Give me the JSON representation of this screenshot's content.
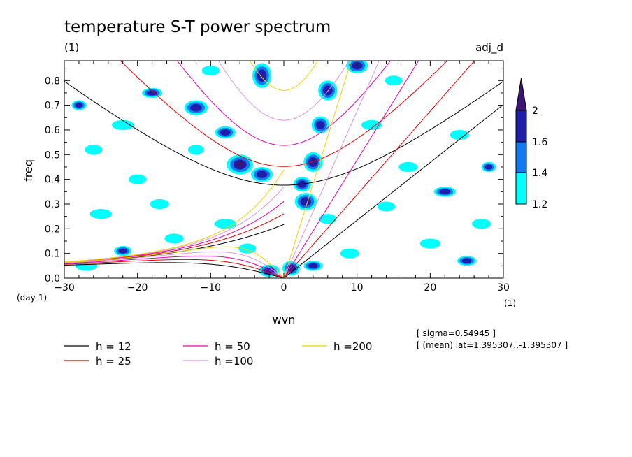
{
  "chart_data": {
    "type": "heatmap",
    "title": "temperature S-T power spectrum",
    "subtitle_left": "(1)",
    "subtitle_right": "adj_d",
    "xlabel": "wvn",
    "ylabel": "freq",
    "x_unit": "(1)",
    "y_unit": "(day-1)",
    "xlim": [
      -30,
      30
    ],
    "ylim": [
      0,
      0.88
    ],
    "x_ticks": [
      -30,
      -20,
      -10,
      0,
      10,
      20,
      30
    ],
    "x_tick_labels": [
      "-30",
      "-20",
      "-10",
      "0",
      "10",
      "20",
      "30"
    ],
    "y_ticks": [
      0,
      0.1,
      0.2,
      0.3,
      0.4,
      0.5,
      0.6,
      0.7,
      0.8
    ],
    "y_tick_labels": [
      "0.0",
      "0.1",
      "0.2",
      "0.3",
      "0.4",
      "0.5",
      "0.6",
      "0.7",
      "0.8"
    ],
    "colorbar": {
      "levels": [
        1.2,
        1.4,
        1.6,
        2
      ],
      "labels": [
        "1.2",
        "1.4",
        "1.6",
        "2"
      ],
      "colors": [
        "#00ffff",
        "#1478f0",
        "#1e1eaa",
        "#3c1478"
      ]
    },
    "dispersion_curves": [
      {
        "label": "h = 12",
        "h": 12,
        "color": "#000000"
      },
      {
        "label": "h = 25",
        "h": 25,
        "color": "#e60000"
      },
      {
        "label": "h = 50",
        "h": 50,
        "color": "#e600b4"
      },
      {
        "label": "h =100",
        "h": 100,
        "color": "#dc96dc"
      },
      {
        "label": "h =200",
        "h": 200,
        "color": "#f0d200"
      }
    ],
    "notes": [
      "[ sigma=0.54945 ]",
      "[ (mean) lat=1.395307..-1.395307 ]"
    ],
    "blobs": [
      {
        "x": -3,
        "y": 0.42,
        "rx": 1.5,
        "ry": 0.03,
        "level": 1.6
      },
      {
        "x": -6,
        "y": 0.46,
        "rx": 1.8,
        "ry": 0.04,
        "level": 2
      },
      {
        "x": -8,
        "y": 0.59,
        "rx": 1.4,
        "ry": 0.025,
        "level": 1.6
      },
      {
        "x": -12,
        "y": 0.69,
        "rx": 1.6,
        "ry": 0.03,
        "level": 1.6
      },
      {
        "x": -3,
        "y": 0.82,
        "rx": 1.3,
        "ry": 0.05,
        "level": 1.6
      },
      {
        "x": 3,
        "y": 0.31,
        "rx": 1.5,
        "ry": 0.035,
        "level": 1.6
      },
      {
        "x": 2.5,
        "y": 0.38,
        "rx": 1.2,
        "ry": 0.03,
        "level": 1.6
      },
      {
        "x": 4,
        "y": 0.47,
        "rx": 1.3,
        "ry": 0.04,
        "level": 1.6
      },
      {
        "x": 5,
        "y": 0.62,
        "rx": 1.2,
        "ry": 0.035,
        "level": 1.6
      },
      {
        "x": 6,
        "y": 0.76,
        "rx": 1.3,
        "ry": 0.04,
        "level": 1.6
      },
      {
        "x": 10,
        "y": 0.86,
        "rx": 1.5,
        "ry": 0.03,
        "level": 1.6
      },
      {
        "x": 1,
        "y": 0.04,
        "rx": 1.2,
        "ry": 0.03,
        "level": 1.6
      },
      {
        "x": -2,
        "y": 0.03,
        "rx": 1.4,
        "ry": 0.025,
        "level": 1.6
      },
      {
        "x": 4,
        "y": 0.05,
        "rx": 1.3,
        "ry": 0.02,
        "level": 1.6
      },
      {
        "x": -20,
        "y": 0.4,
        "rx": 1.2,
        "ry": 0.02,
        "level": 1.2
      },
      {
        "x": -25,
        "y": 0.26,
        "rx": 1.5,
        "ry": 0.02,
        "level": 1.2
      },
      {
        "x": -17,
        "y": 0.3,
        "rx": 1.3,
        "ry": 0.02,
        "level": 1.2
      },
      {
        "x": -28,
        "y": 0.7,
        "rx": 1,
        "ry": 0.02,
        "level": 1.6
      },
      {
        "x": -22,
        "y": 0.62,
        "rx": 1.5,
        "ry": 0.02,
        "level": 1.2
      },
      {
        "x": -18,
        "y": 0.75,
        "rx": 1.4,
        "ry": 0.02,
        "level": 1.6
      },
      {
        "x": -15,
        "y": 0.16,
        "rx": 1.3,
        "ry": 0.02,
        "level": 1.2
      },
      {
        "x": -22,
        "y": 0.11,
        "rx": 1.2,
        "ry": 0.02,
        "level": 1.6
      },
      {
        "x": -8,
        "y": 0.22,
        "rx": 1.5,
        "ry": 0.02,
        "level": 1.2
      },
      {
        "x": -27,
        "y": 0.05,
        "rx": 1.5,
        "ry": 0.02,
        "level": 1.2
      },
      {
        "x": 12,
        "y": 0.62,
        "rx": 1.4,
        "ry": 0.02,
        "level": 1.2
      },
      {
        "x": 17,
        "y": 0.45,
        "rx": 1.3,
        "ry": 0.02,
        "level": 1.2
      },
      {
        "x": 22,
        "y": 0.35,
        "rx": 1.5,
        "ry": 0.02,
        "level": 1.6
      },
      {
        "x": 27,
        "y": 0.22,
        "rx": 1.3,
        "ry": 0.02,
        "level": 1.2
      },
      {
        "x": 14,
        "y": 0.29,
        "rx": 1.2,
        "ry": 0.02,
        "level": 1.2
      },
      {
        "x": 20,
        "y": 0.14,
        "rx": 1.4,
        "ry": 0.02,
        "level": 1.2
      },
      {
        "x": 25,
        "y": 0.07,
        "rx": 1.3,
        "ry": 0.02,
        "level": 1.6
      },
      {
        "x": 15,
        "y": 0.8,
        "rx": 1.2,
        "ry": 0.02,
        "level": 1.2
      },
      {
        "x": 24,
        "y": 0.58,
        "rx": 1.3,
        "ry": 0.02,
        "level": 1.2
      },
      {
        "x": 28,
        "y": 0.45,
        "rx": 1,
        "ry": 0.02,
        "level": 1.6
      },
      {
        "x": -12,
        "y": 0.52,
        "rx": 1.1,
        "ry": 0.02,
        "level": 1.2
      },
      {
        "x": 9,
        "y": 0.1,
        "rx": 1.3,
        "ry": 0.02,
        "level": 1.2
      },
      {
        "x": -10,
        "y": 0.84,
        "rx": 1.2,
        "ry": 0.02,
        "level": 1.2
      },
      {
        "x": -26,
        "y": 0.52,
        "rx": 1.2,
        "ry": 0.02,
        "level": 1.2
      },
      {
        "x": 6,
        "y": 0.24,
        "rx": 1.2,
        "ry": 0.02,
        "level": 1.2
      },
      {
        "x": -5,
        "y": 0.12,
        "rx": 1.2,
        "ry": 0.02,
        "level": 1.2
      }
    ]
  }
}
